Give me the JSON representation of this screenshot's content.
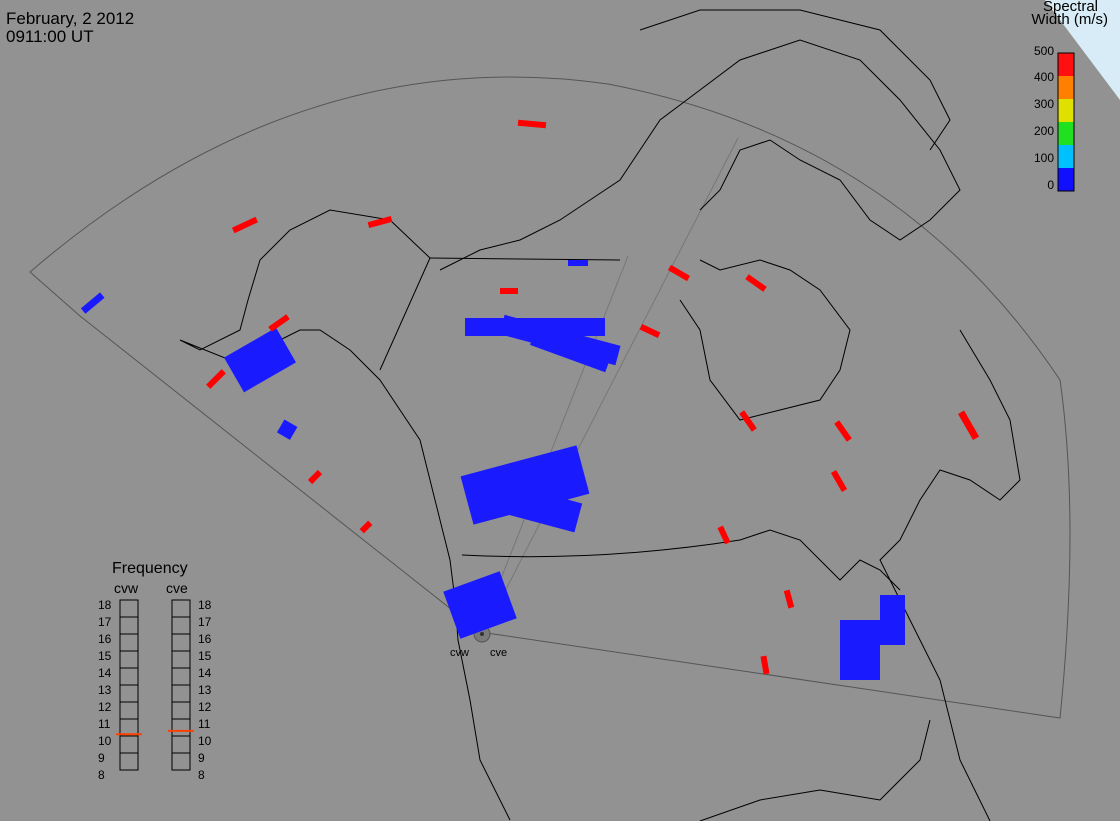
{
  "header": {
    "date": "February, 2 2012",
    "time": "0911:00 UT"
  },
  "colorbar": {
    "title_line1": "Spectral",
    "title_line2": "Width (m/s)",
    "ticks": [
      "500",
      "400",
      "300",
      "200",
      "100",
      "0"
    ],
    "colors": [
      "#0000ff",
      "#00b0ff",
      "#00ff00",
      "#ffff00",
      "#ffa000",
      "#ff0000"
    ]
  },
  "frequency": {
    "title": "Frequency",
    "radars": [
      {
        "name": "cvw",
        "selected_mhz": 10.6
      },
      {
        "name": "cve",
        "selected_mhz": 10.8
      }
    ],
    "ticks": [
      "18",
      "17",
      "16",
      "15",
      "14",
      "13",
      "12",
      "11",
      "10",
      "9",
      "8"
    ],
    "marker_color": "#ff4000"
  },
  "sites": {
    "west": "cvw",
    "east": "cve"
  }
}
